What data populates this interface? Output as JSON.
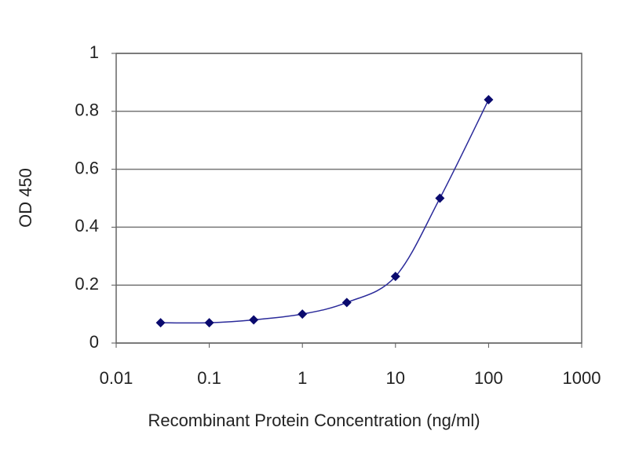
{
  "chart_data": {
    "type": "line",
    "xlabel": "Recombinant Protein Concentration (ng/ml)",
    "ylabel": "OD 450",
    "x": [
      0.03,
      0.1,
      0.3,
      1,
      3,
      10,
      30,
      100
    ],
    "series": [
      {
        "color": "#2a2a9a",
        "marker_color": "#0a0a6e",
        "values": [
          0.07,
          0.07,
          0.08,
          0.1,
          0.14,
          0.23,
          0.5,
          0.84
        ]
      }
    ],
    "xscale": "log",
    "xlim": [
      0.01,
      1000
    ],
    "xticks": [
      0.01,
      0.1,
      1,
      10,
      100,
      1000
    ],
    "ylim": [
      0,
      1
    ],
    "yticks": [
      0,
      0.2,
      0.4,
      0.6,
      0.8,
      1
    ],
    "grid": true
  }
}
